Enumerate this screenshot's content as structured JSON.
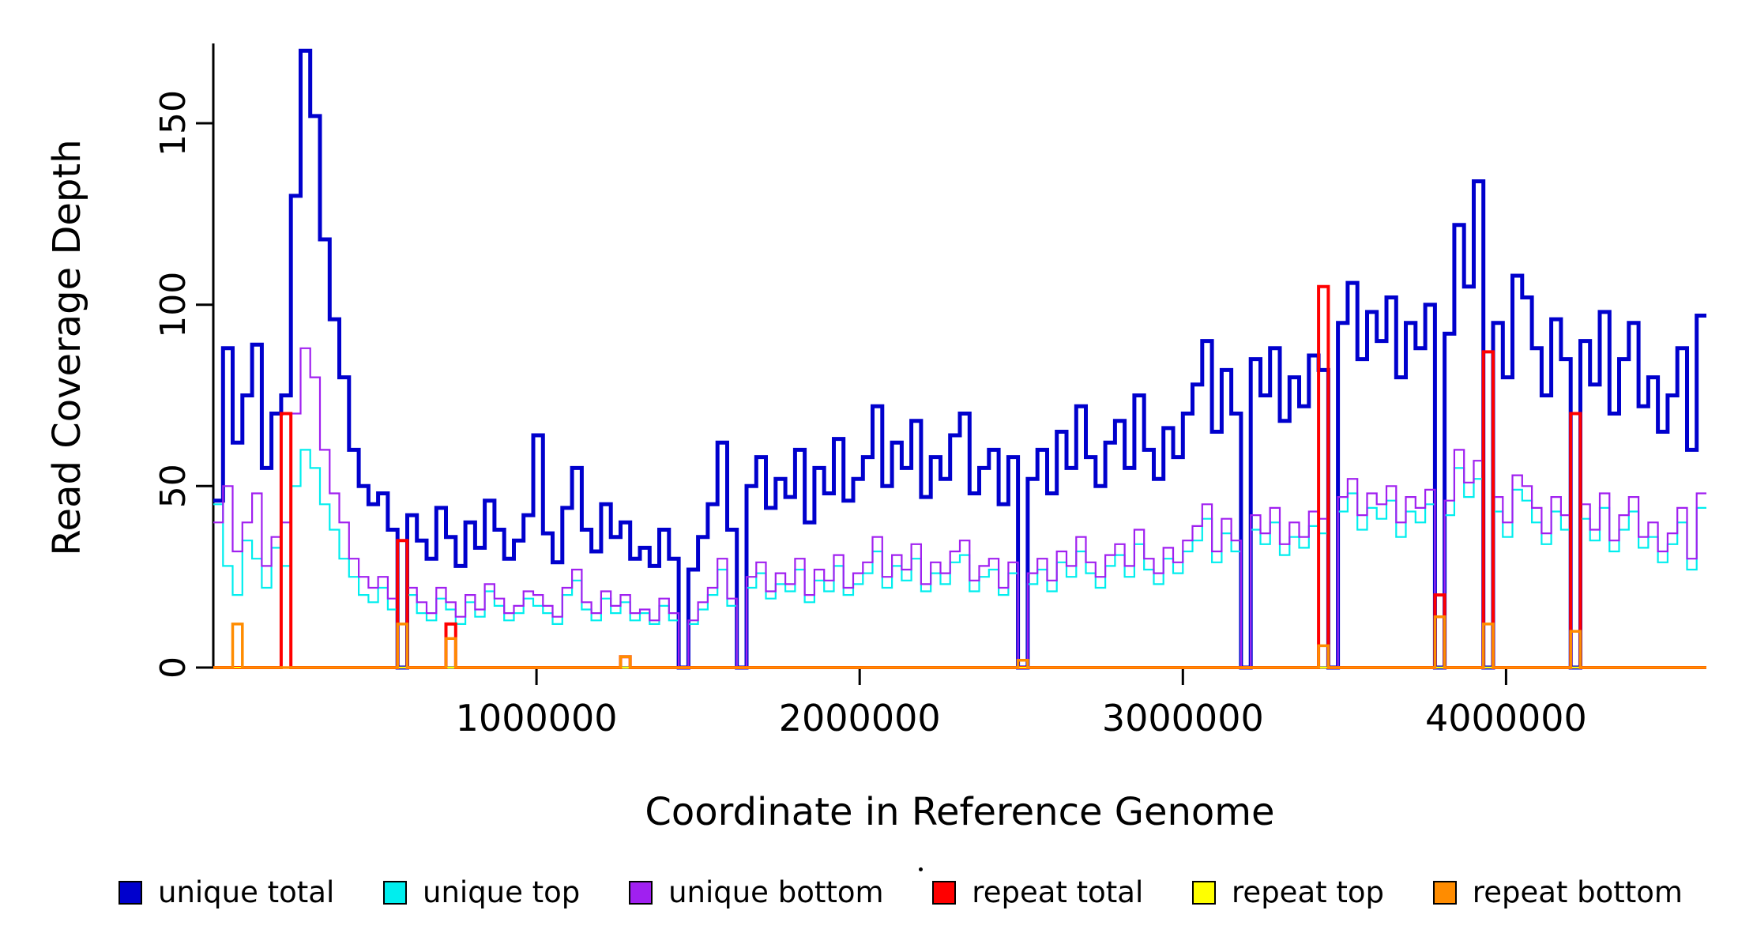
{
  "chart_data": {
    "type": "line",
    "style": "step",
    "title": "",
    "xlabel": "Coordinate in Reference Genome",
    "ylabel": "Read Coverage Depth",
    "xlim": [
      0,
      4620000
    ],
    "ylim": [
      0,
      172
    ],
    "grid": false,
    "legend_position": "bottom",
    "x_ticks": [
      1000000,
      2000000,
      3000000,
      4000000
    ],
    "x_tick_labels": [
      "1000000",
      "2000000",
      "3000000",
      "4000000"
    ],
    "y_ticks": [
      0,
      50,
      100,
      150
    ],
    "y_tick_labels": [
      "0",
      "50",
      "100",
      "150"
    ],
    "bin_width": 30000,
    "series": [
      {
        "name": "unique total",
        "color": "#0000CD",
        "line_width": 5,
        "values": [
          46,
          88,
          62,
          75,
          89,
          55,
          70,
          75,
          130,
          170,
          152,
          118,
          96,
          80,
          60,
          50,
          45,
          48,
          38,
          0,
          42,
          35,
          30,
          44,
          36,
          28,
          40,
          33,
          46,
          38,
          30,
          35,
          42,
          64,
          37,
          29,
          44,
          55,
          38,
          32,
          45,
          36,
          40,
          30,
          33,
          28,
          38,
          30,
          0,
          27,
          36,
          45,
          62,
          38,
          0,
          50,
          58,
          44,
          52,
          47,
          60,
          40,
          55,
          48,
          63,
          46,
          52,
          58,
          72,
          50,
          62,
          55,
          68,
          47,
          58,
          52,
          64,
          70,
          48,
          55,
          60,
          45,
          58,
          0,
          52,
          60,
          48,
          65,
          55,
          72,
          58,
          50,
          62,
          68,
          55,
          75,
          60,
          52,
          66,
          58,
          70,
          78,
          90,
          65,
          82,
          70,
          0,
          85,
          75,
          88,
          68,
          80,
          72,
          86,
          82,
          0,
          95,
          106,
          85,
          98,
          90,
          102,
          80,
          95,
          88,
          100,
          0,
          92,
          122,
          105,
          134,
          0,
          95,
          80,
          108,
          102,
          88,
          75,
          96,
          85,
          0,
          90,
          78,
          98,
          70,
          85,
          95,
          72,
          80,
          65,
          75,
          88,
          60,
          97
        ]
      },
      {
        "name": "unique top",
        "color": "#00EEEE",
        "line_width": 2.2,
        "values": [
          45,
          28,
          20,
          35,
          30,
          22,
          33,
          28,
          50,
          60,
          55,
          45,
          38,
          30,
          25,
          20,
          18,
          22,
          16,
          0,
          20,
          15,
          13,
          19,
          16,
          12,
          18,
          14,
          21,
          17,
          13,
          15,
          19,
          17,
          15,
          12,
          20,
          24,
          16,
          13,
          19,
          15,
          18,
          13,
          15,
          12,
          17,
          13,
          0,
          12,
          16,
          20,
          27,
          17,
          0,
          22,
          26,
          19,
          23,
          21,
          27,
          18,
          24,
          21,
          28,
          20,
          23,
          26,
          32,
          22,
          28,
          24,
          30,
          21,
          26,
          23,
          29,
          31,
          21,
          25,
          27,
          20,
          26,
          0,
          23,
          27,
          21,
          29,
          25,
          32,
          26,
          22,
          28,
          31,
          25,
          34,
          27,
          23,
          30,
          26,
          32,
          35,
          41,
          29,
          37,
          32,
          0,
          38,
          34,
          40,
          31,
          36,
          33,
          39,
          37,
          0,
          43,
          48,
          38,
          44,
          41,
          46,
          36,
          43,
          40,
          45,
          0,
          42,
          55,
          47,
          52,
          0,
          43,
          36,
          49,
          46,
          40,
          34,
          43,
          38,
          0,
          41,
          35,
          44,
          32,
          38,
          43,
          33,
          36,
          29,
          34,
          40,
          27,
          44
        ]
      },
      {
        "name": "unique bottom",
        "color": "#A020F0",
        "line_width": 2.2,
        "values": [
          40,
          50,
          32,
          40,
          48,
          28,
          36,
          40,
          70,
          88,
          80,
          60,
          48,
          40,
          30,
          25,
          22,
          25,
          19,
          0,
          22,
          18,
          15,
          22,
          18,
          14,
          20,
          16,
          23,
          19,
          15,
          17,
          21,
          20,
          17,
          14,
          22,
          27,
          18,
          15,
          21,
          17,
          20,
          15,
          16,
          13,
          19,
          15,
          0,
          13,
          18,
          22,
          30,
          19,
          0,
          25,
          29,
          21,
          26,
          23,
          30,
          20,
          27,
          24,
          31,
          22,
          26,
          29,
          36,
          25,
          31,
          27,
          34,
          23,
          29,
          26,
          32,
          35,
          24,
          28,
          30,
          22,
          29,
          0,
          26,
          30,
          24,
          32,
          28,
          36,
          29,
          25,
          31,
          34,
          28,
          38,
          30,
          26,
          33,
          29,
          35,
          39,
          45,
          32,
          41,
          35,
          0,
          42,
          37,
          44,
          34,
          40,
          36,
          43,
          41,
          0,
          47,
          52,
          42,
          48,
          45,
          50,
          40,
          47,
          44,
          49,
          0,
          46,
          60,
          51,
          57,
          0,
          47,
          40,
          53,
          50,
          44,
          37,
          47,
          42,
          0,
          45,
          38,
          48,
          35,
          42,
          47,
          36,
          40,
          32,
          37,
          44,
          30,
          48
        ]
      },
      {
        "name": "repeat total",
        "color": "#FF0000",
        "line_width": 4,
        "values": [
          0,
          0,
          0,
          0,
          0,
          0,
          0,
          70,
          0,
          0,
          0,
          0,
          0,
          0,
          0,
          0,
          0,
          0,
          0,
          35,
          0,
          0,
          0,
          0,
          12,
          0,
          0,
          0,
          0,
          0,
          0,
          0,
          0,
          0,
          0,
          0,
          0,
          0,
          0,
          0,
          0,
          0,
          3,
          0,
          0,
          0,
          0,
          0,
          0,
          0,
          0,
          0,
          0,
          0,
          0,
          0,
          0,
          0,
          0,
          0,
          0,
          0,
          0,
          0,
          0,
          0,
          0,
          0,
          0,
          0,
          0,
          0,
          0,
          0,
          0,
          0,
          0,
          0,
          0,
          0,
          0,
          0,
          0,
          0,
          0,
          0,
          0,
          0,
          0,
          0,
          0,
          0,
          0,
          0,
          0,
          0,
          0,
          0,
          0,
          0,
          0,
          0,
          0,
          0,
          0,
          0,
          0,
          0,
          0,
          0,
          0,
          0,
          0,
          0,
          105,
          0,
          0,
          0,
          0,
          0,
          0,
          0,
          0,
          0,
          0,
          0,
          20,
          0,
          0,
          0,
          0,
          87,
          0,
          0,
          0,
          0,
          0,
          0,
          0,
          0,
          70,
          0,
          0,
          0,
          0,
          0,
          0,
          0,
          0,
          0,
          0,
          0,
          0,
          0
        ]
      },
      {
        "name": "repeat top",
        "color": "#FFFF00",
        "line_width": 2.2,
        "values": [
          0,
          0,
          0,
          0,
          0,
          0,
          0,
          0,
          0,
          0,
          0,
          0,
          0,
          0,
          0,
          0,
          0,
          0,
          0,
          0,
          0,
          0,
          0,
          0,
          0,
          0,
          0,
          0,
          0,
          0,
          0,
          0,
          0,
          0,
          0,
          0,
          0,
          0,
          0,
          0,
          0,
          0,
          0,
          0,
          0,
          0,
          0,
          0,
          0,
          0,
          0,
          0,
          0,
          0,
          0,
          0,
          0,
          0,
          0,
          0,
          0,
          0,
          0,
          0,
          0,
          0,
          0,
          0,
          0,
          0,
          0,
          0,
          0,
          0,
          0,
          0,
          0,
          0,
          0,
          0,
          0,
          0,
          0,
          0,
          0,
          0,
          0,
          0,
          0,
          0,
          0,
          0,
          0,
          0,
          0,
          0,
          0,
          0,
          0,
          0,
          0,
          0,
          0,
          0,
          0,
          0,
          0,
          0,
          0,
          0,
          0,
          0,
          0,
          0,
          0,
          0,
          0,
          0,
          0,
          0,
          0,
          0,
          0,
          0,
          0,
          0,
          0,
          0,
          0,
          0,
          0,
          0,
          0,
          0,
          0,
          0,
          0,
          0,
          0,
          0,
          0,
          0,
          0,
          0,
          0,
          0,
          0,
          0,
          0,
          0,
          0,
          0,
          0,
          0
        ]
      },
      {
        "name": "repeat bottom",
        "color": "#FF8C00",
        "line_width": 3.5,
        "values": [
          0,
          0,
          12,
          0,
          0,
          0,
          0,
          0,
          0,
          0,
          0,
          0,
          0,
          0,
          0,
          0,
          0,
          0,
          0,
          12,
          0,
          0,
          0,
          0,
          8,
          0,
          0,
          0,
          0,
          0,
          0,
          0,
          0,
          0,
          0,
          0,
          0,
          0,
          0,
          0,
          0,
          0,
          3,
          0,
          0,
          0,
          0,
          0,
          0,
          0,
          0,
          0,
          0,
          0,
          0,
          0,
          0,
          0,
          0,
          0,
          0,
          0,
          0,
          0,
          0,
          0,
          0,
          0,
          0,
          0,
          0,
          0,
          0,
          0,
          0,
          0,
          0,
          0,
          0,
          0,
          0,
          0,
          0,
          2,
          0,
          0,
          0,
          0,
          0,
          0,
          0,
          0,
          0,
          0,
          0,
          0,
          0,
          0,
          0,
          0,
          0,
          0,
          0,
          0,
          0,
          0,
          0,
          0,
          0,
          0,
          0,
          0,
          0,
          0,
          6,
          0,
          0,
          0,
          0,
          0,
          0,
          0,
          0,
          0,
          0,
          0,
          14,
          0,
          0,
          0,
          0,
          12,
          0,
          0,
          0,
          0,
          0,
          0,
          0,
          0,
          10,
          0,
          0,
          0,
          0,
          0,
          0,
          0,
          0,
          0,
          0,
          0,
          0,
          0
        ]
      }
    ],
    "legend": [
      {
        "label": "unique total",
        "color": "#0000CD"
      },
      {
        "label": "unique top",
        "color": "#00EEEE"
      },
      {
        "label": "unique bottom",
        "color": "#A020F0"
      },
      {
        "label": "repeat total",
        "color": "#FF0000"
      },
      {
        "label": "repeat top",
        "color": "#FFFF00"
      },
      {
        "label": "repeat bottom",
        "color": "#FF8C00"
      }
    ]
  }
}
